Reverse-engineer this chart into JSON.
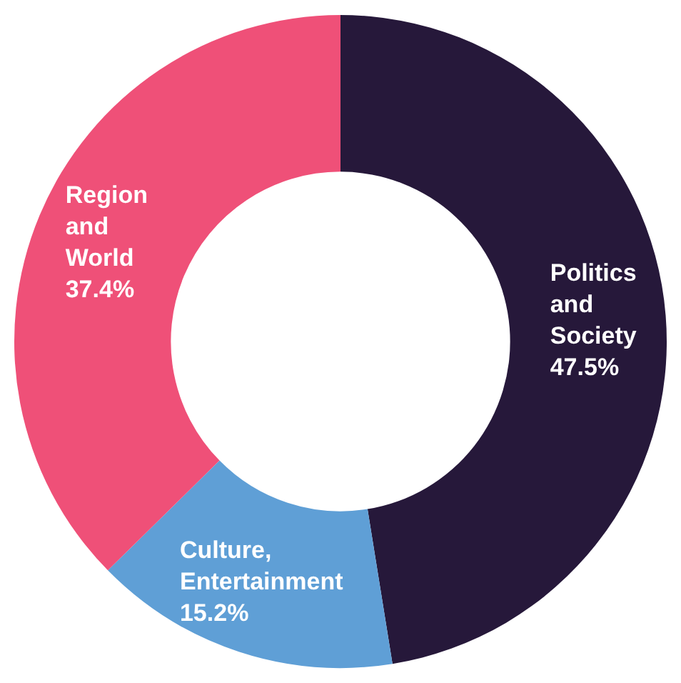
{
  "chart_data": {
    "type": "donut",
    "categories": [
      "Politics and Society",
      "Culture, Entertainment",
      "Region and World"
    ],
    "values": [
      47.5,
      15.2,
      37.4
    ],
    "colors": [
      "#26183a",
      "#5f9fd6",
      "#ef5078"
    ],
    "value_labels": [
      "47.5%",
      "15.2%",
      "37.4%"
    ],
    "legend": false
  }
}
